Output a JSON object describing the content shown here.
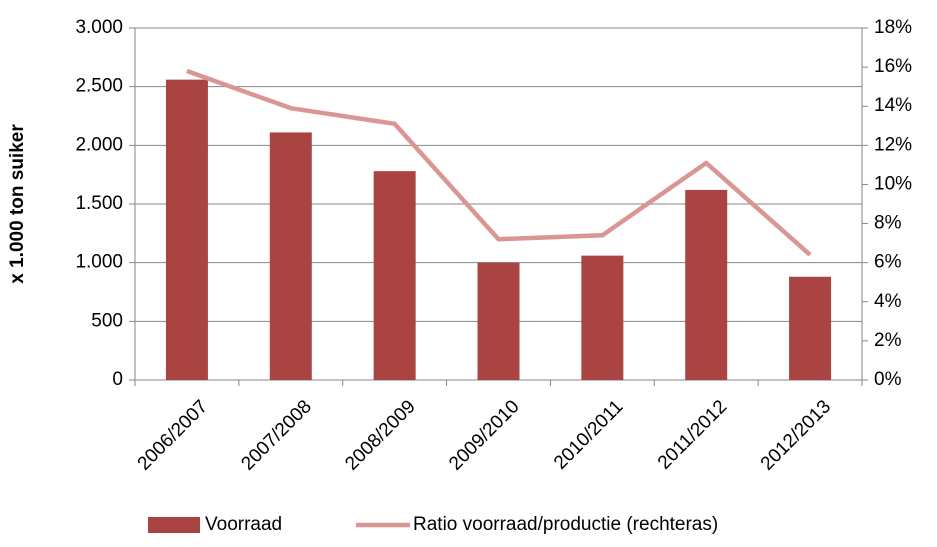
{
  "chart_data": {
    "type": "bar-line",
    "y_label": "x 1.000 ton suiker",
    "categories": [
      "2006/2007",
      "2007/2008",
      "2008/2009",
      "2009/2010",
      "2010/2011",
      "2011/2012",
      "2012/2013"
    ],
    "series": [
      {
        "name": "Voorraad",
        "type": "bar",
        "color": "#a94442",
        "values": [
          2560,
          2110,
          1780,
          1000,
          1060,
          1620,
          880
        ]
      },
      {
        "name": "Ratio voorraad/productie (rechteras)",
        "type": "line",
        "axis": "y2",
        "color": "#d99694",
        "values": [
          15.8,
          13.9,
          13.1,
          7.2,
          7.4,
          11.1,
          6.4
        ]
      }
    ],
    "ylim": [
      0,
      3000
    ],
    "yticks": [
      0,
      {
        "value": 500,
        "label": "500"
      },
      {
        "value": 1000,
        "label": "1.000"
      },
      {
        "value": 1500,
        "label": "1.500"
      },
      {
        "value": 2000,
        "label": "2.000"
      },
      {
        "value": 2500,
        "label": "2.500"
      },
      {
        "value": 3000,
        "label": "3.000"
      }
    ],
    "y2lim": [
      0,
      18
    ],
    "y2ticks": [
      {
        "value": 0,
        "label": "0%"
      },
      {
        "value": 2,
        "label": "2%"
      },
      {
        "value": 4,
        "label": "4%"
      },
      {
        "value": 6,
        "label": "6%"
      },
      {
        "value": 8,
        "label": "8%"
      },
      {
        "value": 10,
        "label": "10%"
      },
      {
        "value": 12,
        "label": "12%"
      },
      {
        "value": 14,
        "label": "14%"
      },
      {
        "value": 16,
        "label": "16%"
      },
      {
        "value": 18,
        "label": "18%"
      }
    ],
    "grid": true,
    "legend": "bottom"
  }
}
